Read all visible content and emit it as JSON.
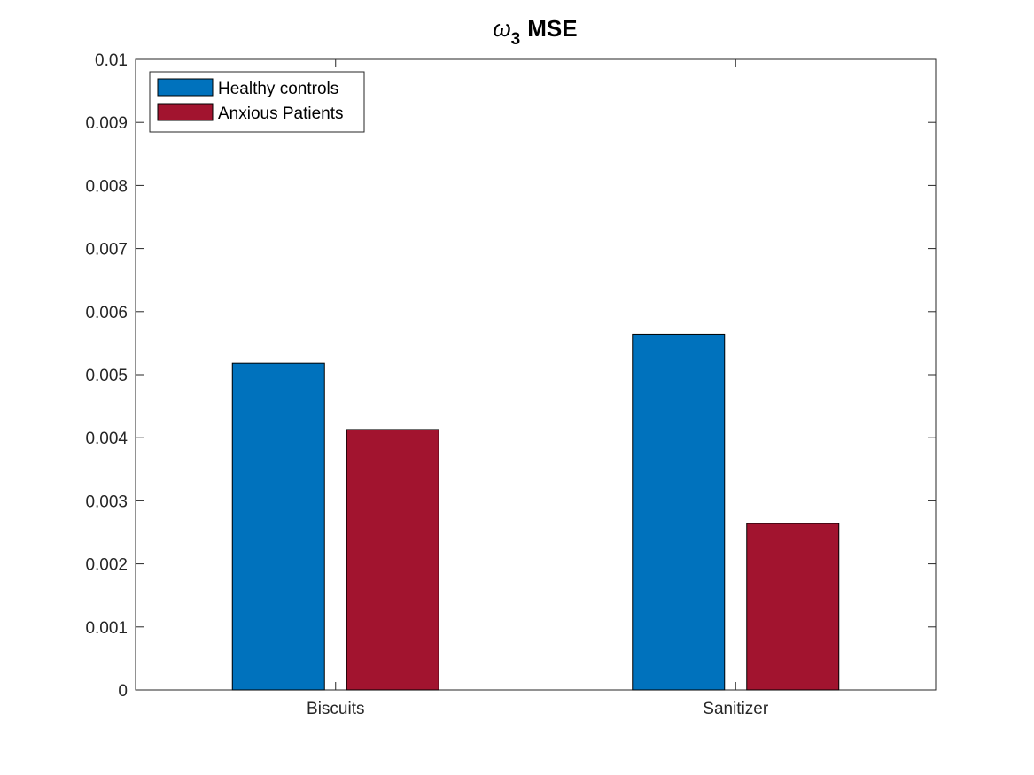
{
  "chart_data": {
    "type": "bar",
    "title": {
      "symbol": "ω",
      "subscript": "3",
      "text": "MSE"
    },
    "categories": [
      "Biscuits",
      "Sanitizer"
    ],
    "series": [
      {
        "name": "Healthy controls",
        "color": "#0072BD",
        "values": [
          0.00518,
          0.00564
        ]
      },
      {
        "name": "Anxious Patients",
        "color": "#A2142F",
        "values": [
          0.00413,
          0.00264
        ]
      }
    ],
    "ylim": [
      0,
      0.01
    ],
    "yticks": [
      0,
      0.001,
      0.002,
      0.003,
      0.004,
      0.005,
      0.006,
      0.007,
      0.008,
      0.009,
      0.01
    ],
    "ytick_labels": [
      "0",
      "0.001",
      "0.002",
      "0.003",
      "0.004",
      "0.005",
      "0.006",
      "0.007",
      "0.008",
      "0.009",
      "0.01"
    ],
    "legend_position": "top-left",
    "grid": false
  }
}
